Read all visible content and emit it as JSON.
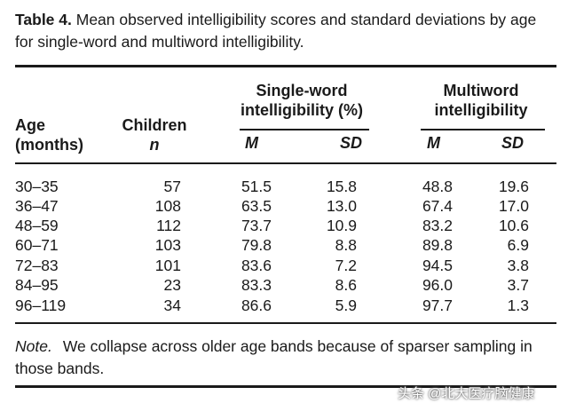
{
  "caption": {
    "label": "Table 4.",
    "text": "Mean observed intelligibility scores and standard deviations by age for single-word and multiword intelligibility."
  },
  "headers": {
    "age": [
      "Age",
      "(months)"
    ],
    "children": [
      "Children",
      "n"
    ],
    "single_word": [
      "Single-word",
      "intelligibility (%)"
    ],
    "multiword": [
      "Multiword",
      "intelligibility"
    ],
    "m": "M",
    "sd": "SD"
  },
  "rows": [
    {
      "age": "30–35",
      "n": "57",
      "sw_m": "51.5",
      "sw_sd": "15.8",
      "mw_m": "48.8",
      "mw_sd": "19.6"
    },
    {
      "age": "36–47",
      "n": "108",
      "sw_m": "63.5",
      "sw_sd": "13.0",
      "mw_m": "67.4",
      "mw_sd": "17.0"
    },
    {
      "age": "48–59",
      "n": "112",
      "sw_m": "73.7",
      "sw_sd": "10.9",
      "mw_m": "83.2",
      "mw_sd": "10.6"
    },
    {
      "age": "60–71",
      "n": "103",
      "sw_m": "79.8",
      "sw_sd": "8.8",
      "mw_m": "89.8",
      "mw_sd": "6.9"
    },
    {
      "age": "72–83",
      "n": "101",
      "sw_m": "83.6",
      "sw_sd": "7.2",
      "mw_m": "94.5",
      "mw_sd": "3.8"
    },
    {
      "age": "84–95",
      "n": "23",
      "sw_m": "83.3",
      "sw_sd": "8.6",
      "mw_m": "96.0",
      "mw_sd": "3.7"
    },
    {
      "age": "96–119",
      "n": "34",
      "sw_m": "86.6",
      "sw_sd": "5.9",
      "mw_m": "97.7",
      "mw_sd": "1.3"
    }
  ],
  "note": {
    "label": "Note.",
    "text": "We collapse across older age bands because of sparser sampling in those bands."
  },
  "watermark": "头条 @北大医疗脑健康"
}
